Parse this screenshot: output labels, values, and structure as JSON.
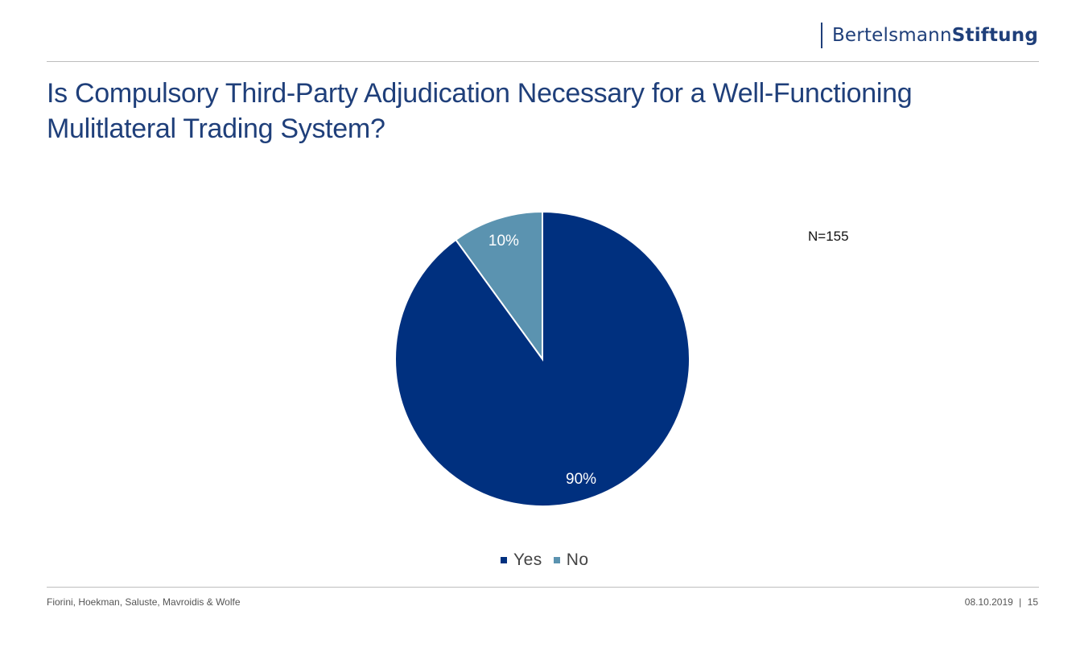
{
  "brand": {
    "part1": "Bertelsmann",
    "part2": "Stiftung",
    "color": "#1f3f7a"
  },
  "title": {
    "line1": "Is Compulsory Third-Party Adjudication Necessary for a Well-Functioning",
    "line2": "Mulitlateral Trading System?"
  },
  "annotation": "N=155",
  "chart_data": {
    "type": "pie",
    "categories": [
      "Yes",
      "No"
    ],
    "values": [
      90,
      10
    ],
    "labels": [
      "90%",
      "10%"
    ],
    "colors": [
      "#00307f",
      "#5b93b0"
    ],
    "start": "12 o'clock",
    "direction": "clockwise",
    "legend": "bottom",
    "annotation": "N=155"
  },
  "footer": {
    "authors": "Fiorini, Hoekman,  Saluste, Mavroidis & Wolfe",
    "date": "08.10.2019",
    "separator": "|",
    "page": "15"
  }
}
